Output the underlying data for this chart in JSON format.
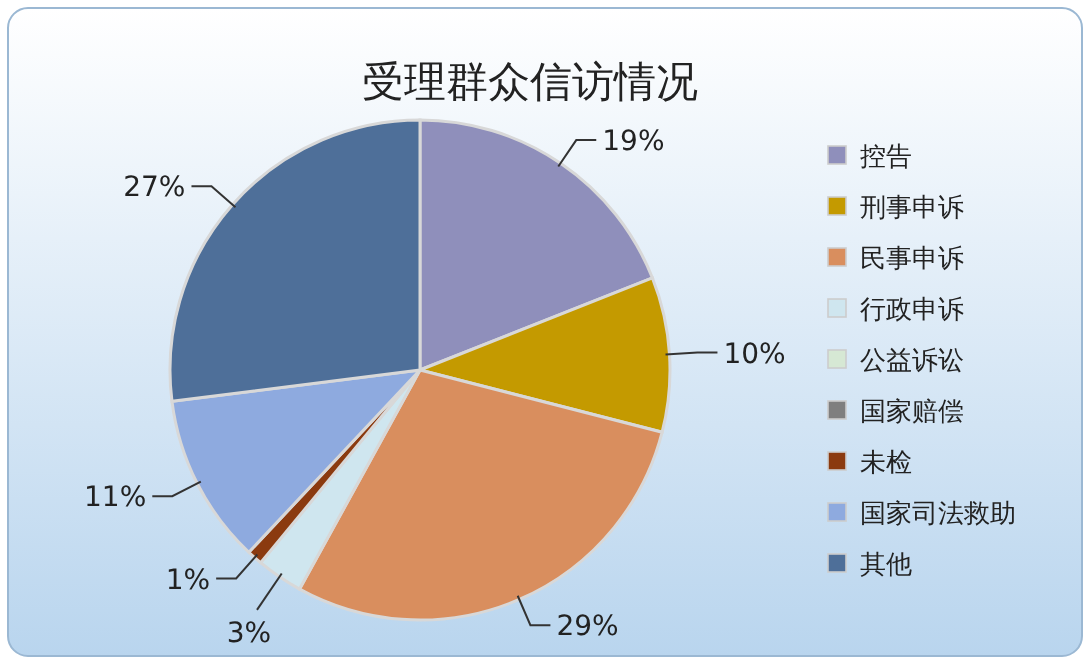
{
  "chart_data": {
    "type": "pie",
    "title": "受理群众信访情况",
    "categories": [
      "控告",
      "刑事申诉",
      "民事申诉",
      "行政申诉",
      "公益诉讼",
      "国家赔偿",
      "未检",
      "国家司法救助",
      "其他"
    ],
    "values": [
      19,
      10,
      29,
      3,
      0,
      0,
      1,
      11,
      27
    ],
    "value_labels": [
      "19%",
      "10%",
      "29%",
      "3%",
      null,
      null,
      "1%",
      "11%",
      "27%"
    ],
    "colors": [
      "#8f8fbb",
      "#c49a00",
      "#d98e5e",
      "#cfe6ef",
      "#d6e8d4",
      "#7f7f7f",
      "#8b3a0f",
      "#8eaadf",
      "#4e6f99"
    ],
    "legend": "right"
  }
}
